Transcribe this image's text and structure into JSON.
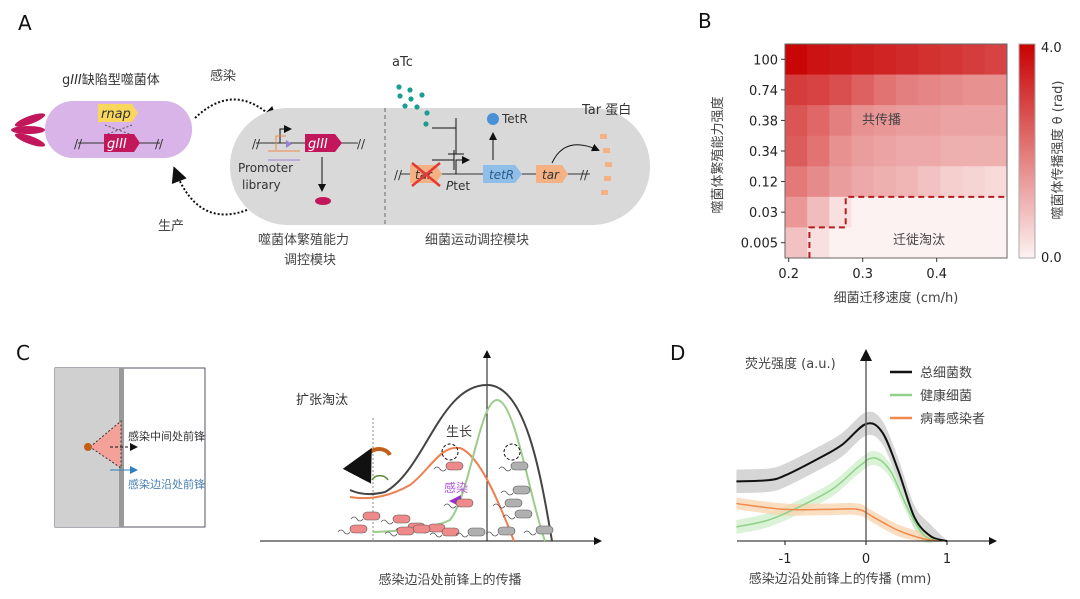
{
  "panels": {
    "a": "A",
    "b": "B",
    "c": "C",
    "d": "D"
  },
  "panel_a": {
    "phage_title_prefix": "g",
    "phage_title_italic": "III",
    "phage_title_suffix": "缺陷型噬菌体",
    "rnap": "rnap",
    "gIII": "gIII",
    "infect": "感染",
    "produce": "生产",
    "promoter_line1": "Promoter",
    "promoter_line2": "library",
    "module1_line1": "噬菌体繁殖能力",
    "module1_line2": "调控模块",
    "module2": "细菌运动调控模块",
    "atc": "aTc",
    "tetr_protein": "TetR",
    "tar_gene": "tar",
    "ptet_italic": "P",
    "ptet_rest": "tet",
    "tetr_gene": "tetR",
    "tar_gene2": "tar",
    "tar_protein": "Tar 蛋白",
    "colors": {
      "phage": "#d8b4e8",
      "gIII": "#c2185b",
      "rnap": "#f9d65c",
      "cell": "#d9d9d9",
      "atc": "#1a9e8f",
      "tetR": "#8fbfe8",
      "tar": "#f4b183"
    }
  },
  "panel_c": {
    "middle_front": "感染中间处前锋",
    "edge_front": "感染边沿处前锋",
    "expansion": "扩张淘汰",
    "growth": "生长",
    "infection": "感染",
    "caption": "感染边沿处前锋上的传播",
    "colors": {
      "total": "#333333",
      "healthy": "#9ccc8c",
      "infected": "#ee7f4f",
      "infection_arrow": "#9b30d0",
      "edge_arrow": "#2e7fc1"
    }
  },
  "chart_data": [
    {
      "type": "heatmap",
      "panel": "B",
      "xlabel": "细菌迁移速度 (cm/h)",
      "ylabel": "噬菌体繁殖能力强度",
      "x_ticks": [
        0.2,
        0.3,
        0.4
      ],
      "x_tick_labels": [
        "0.2",
        "0.3",
        "0.4"
      ],
      "x_bins": [
        0.21,
        0.24,
        0.27,
        0.3,
        0.33,
        0.36,
        0.39,
        0.42,
        0.45,
        0.48
      ],
      "y_categories": [
        "100",
        "0.74",
        "0.38",
        "0.34",
        "0.12",
        "0.03",
        "0.005"
      ],
      "values": [
        [
          3.9,
          3.7,
          3.6,
          3.5,
          3.4,
          3.3,
          3.2,
          3.1,
          3.0,
          2.9
        ],
        [
          3.0,
          2.9,
          2.7,
          2.4,
          2.1,
          1.9,
          1.8,
          1.7,
          1.6,
          1.6
        ],
        [
          2.6,
          2.3,
          1.9,
          1.6,
          1.5,
          1.4,
          1.4,
          1.3,
          1.3,
          1.3
        ],
        [
          2.5,
          2.1,
          1.6,
          1.4,
          1.3,
          1.2,
          1.2,
          1.1,
          1.1,
          1.1
        ],
        [
          2.0,
          1.7,
          1.4,
          1.2,
          1.1,
          1.0,
          0.8,
          0.6,
          0.5,
          0.4
        ],
        [
          1.5,
          0.9,
          0.3,
          0,
          0,
          0,
          0,
          0,
          0,
          0
        ],
        [
          0.8,
          0.3,
          0,
          0,
          0,
          0,
          0,
          0,
          0,
          0
        ]
      ],
      "colorbar": {
        "label": "噬菌体传播强度 θ (rad)",
        "min": 0.0,
        "max": 4.0,
        "min_label": "0.0",
        "max_label": "4.0",
        "color_low": "#fdf2f2",
        "color_high": "#c80000"
      },
      "region_labels": {
        "cospread": "共传播",
        "elimination": "迁徙淘汰"
      },
      "boundary_steps": [
        [
          0.228,
          0
        ],
        [
          0.228,
          1
        ],
        [
          0.277,
          1
        ],
        [
          0.277,
          2
        ],
        [
          0.495,
          2
        ]
      ],
      "boundary_color": "#b71c1c"
    },
    {
      "type": "line",
      "panel": "D",
      "xlabel": "感染边沿处前锋上的传播 (mm)",
      "ylabel": "荧光强度 (a.u.)",
      "x_ticks": [
        -1,
        0,
        1
      ],
      "x_tick_labels": [
        "-1",
        "0",
        "1"
      ],
      "legend": "top-right",
      "series": [
        {
          "name": "总细菌数",
          "color": "#111111",
          "band_color": "#c8c8c8",
          "band": 0.1,
          "x": [
            -1.6,
            -1.2,
            -1.0,
            -0.6,
            -0.3,
            0.0,
            0.2,
            0.4,
            0.6,
            0.8,
            1.0
          ],
          "y": [
            0.51,
            0.52,
            0.56,
            0.7,
            0.82,
            1.0,
            0.93,
            0.6,
            0.2,
            0.04,
            0.0
          ]
        },
        {
          "name": "健康细菌",
          "color": "#8fd18a",
          "band_color": "#cdeec8",
          "band": 0.06,
          "x": [
            -1.6,
            -1.2,
            -0.8,
            -0.4,
            -0.1,
            0.1,
            0.3,
            0.5,
            0.7,
            0.9
          ],
          "y": [
            0.12,
            0.18,
            0.3,
            0.45,
            0.63,
            0.71,
            0.6,
            0.3,
            0.06,
            0.0
          ]
        },
        {
          "name": "病毒感染者",
          "color": "#f08a4b",
          "band_color": "#f8d3ae",
          "band": 0.05,
          "x": [
            -1.6,
            -1.0,
            -0.5,
            -0.1,
            0.1,
            0.4,
            0.7,
            0.9
          ],
          "y": [
            0.32,
            0.27,
            0.27,
            0.27,
            0.2,
            0.09,
            0.02,
            0.0
          ]
        }
      ]
    }
  ]
}
